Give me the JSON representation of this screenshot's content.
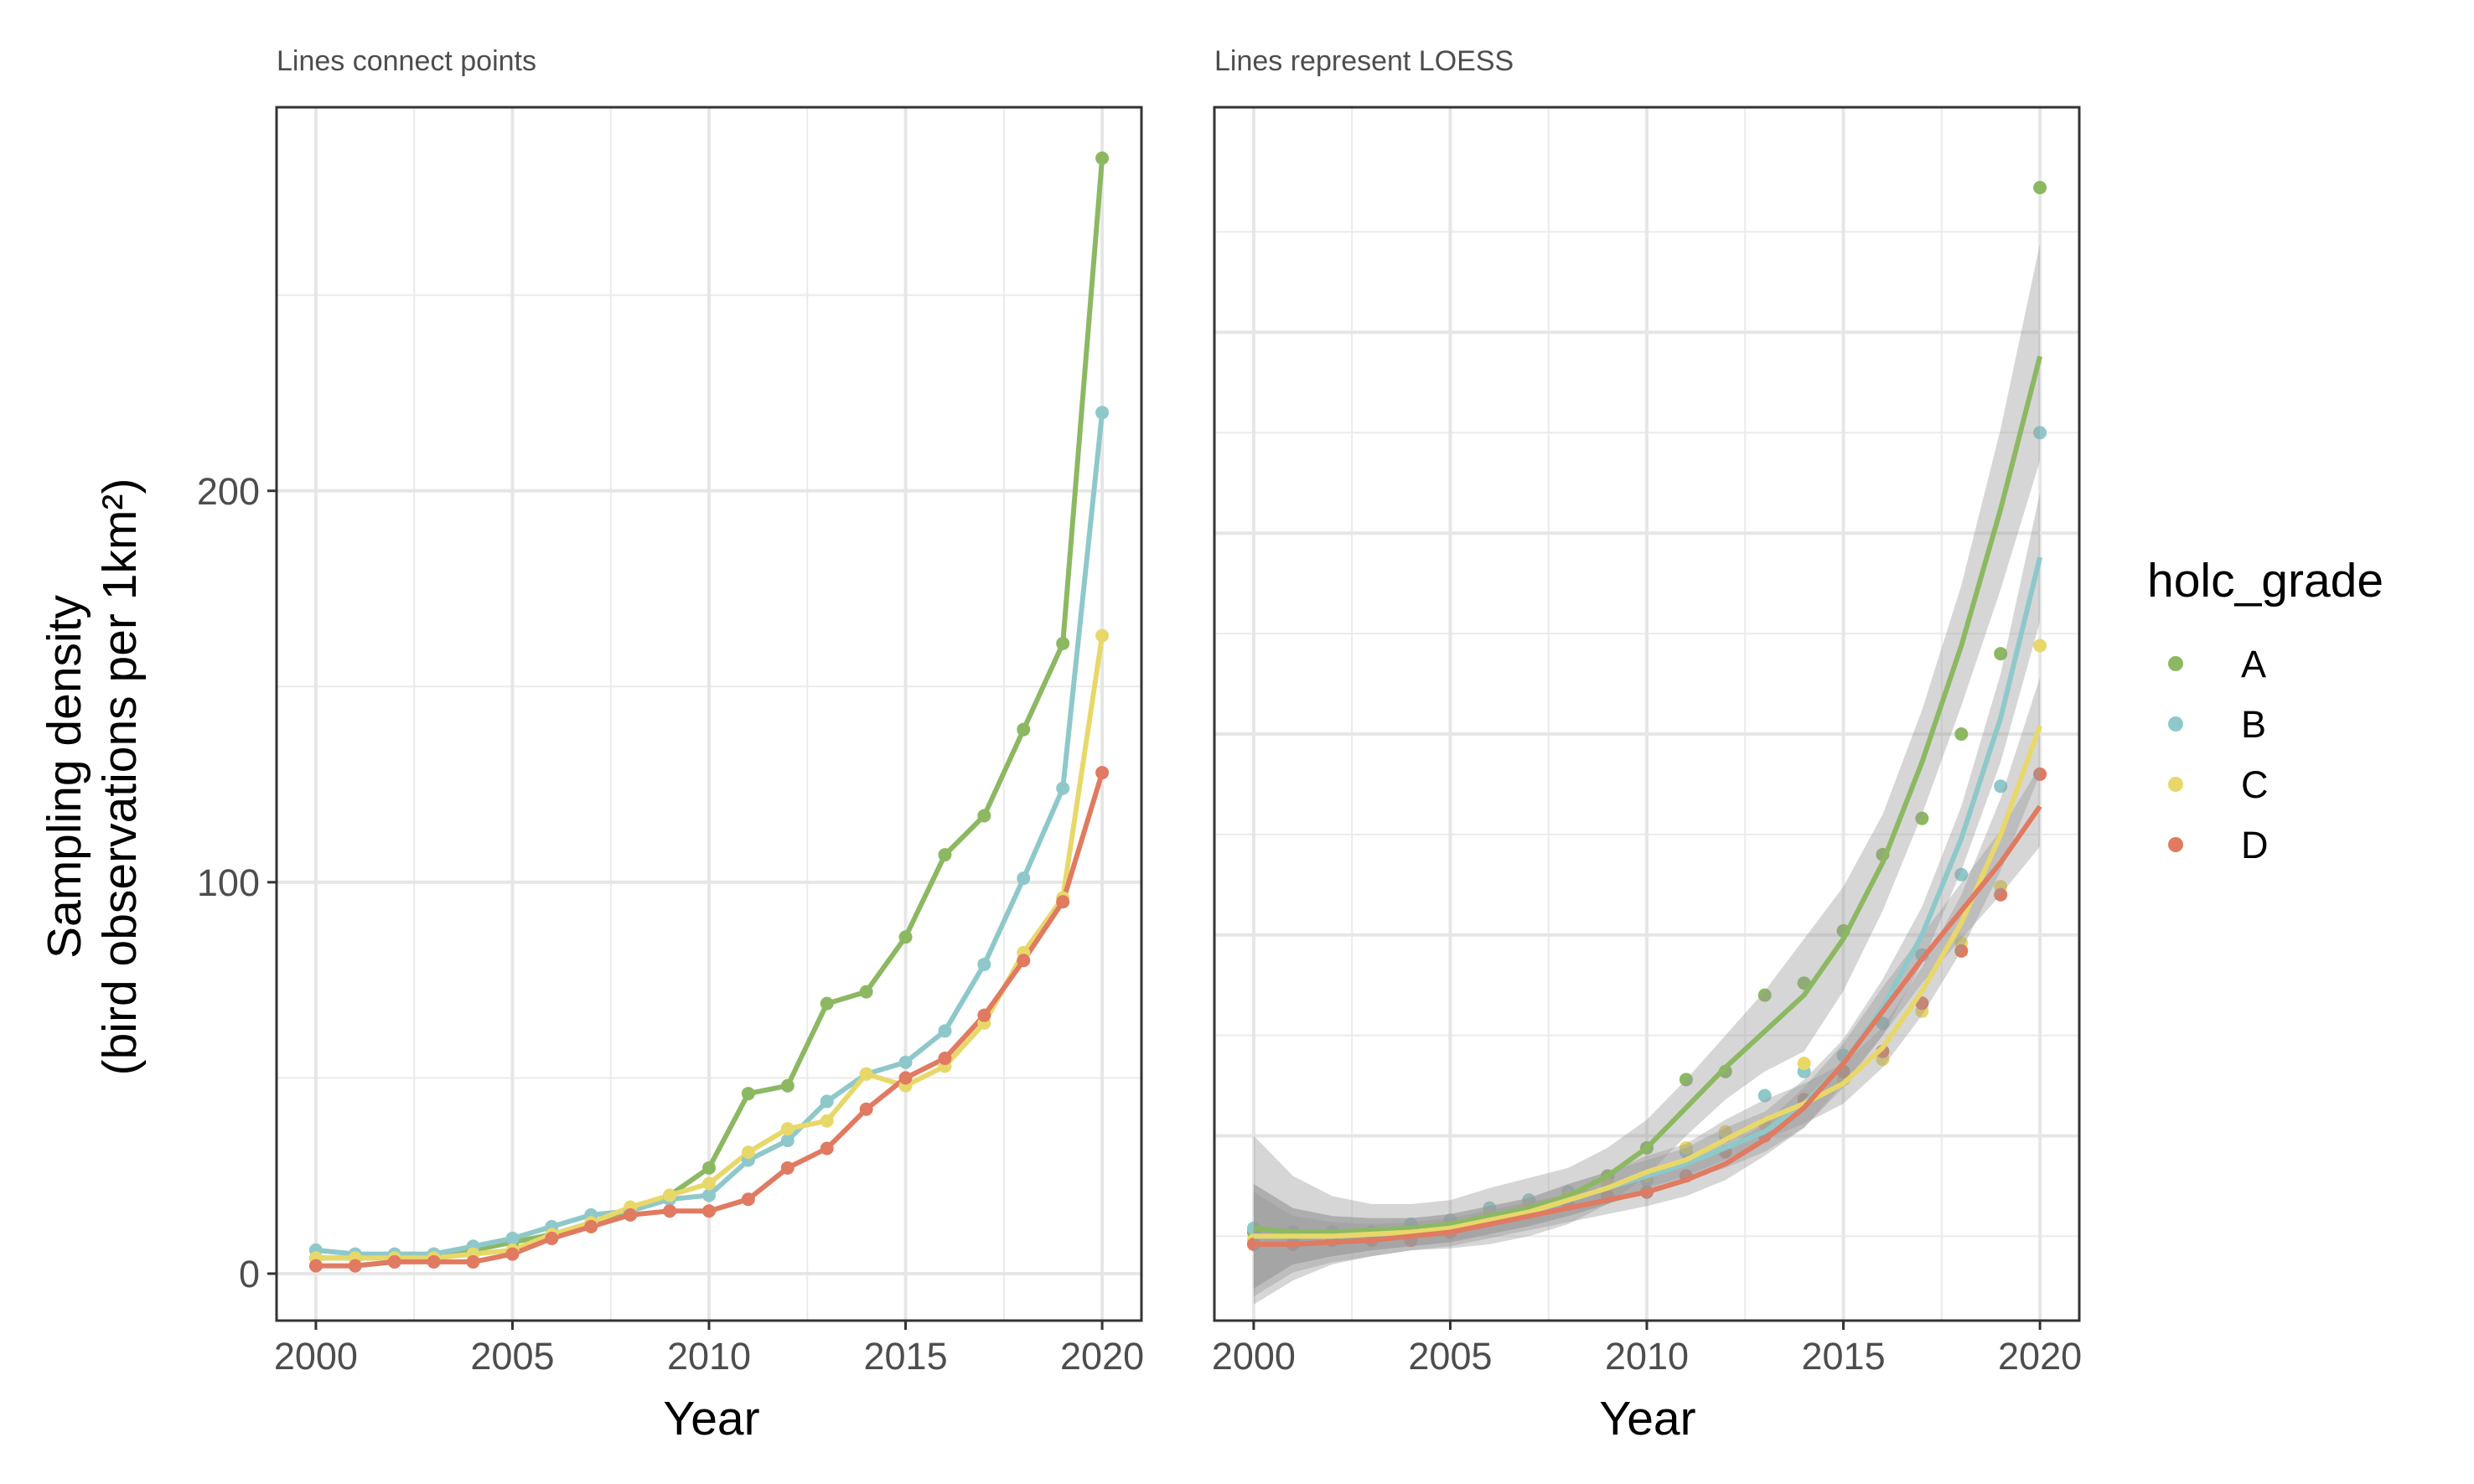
{
  "chart_data": {
    "type": "line",
    "ylabel_line1": "Sampling density",
    "ylabel_line2": "(bird observations per 1km²)",
    "legend": {
      "title": "holc_grade",
      "position": "right"
    },
    "grid": true,
    "x": [
      2000,
      2001,
      2002,
      2003,
      2004,
      2005,
      2006,
      2007,
      2008,
      2009,
      2010,
      2011,
      2012,
      2013,
      2014,
      2015,
      2016,
      2017,
      2018,
      2019,
      2020
    ],
    "series": [
      {
        "name": "A",
        "color": "#8CB862",
        "values": [
          4,
          4,
          4,
          5,
          6,
          8,
          10,
          13,
          16,
          20,
          27,
          46,
          48,
          69,
          72,
          86,
          107,
          117,
          139,
          161,
          285
        ]
      },
      {
        "name": "B",
        "color": "#8EC8CA",
        "values": [
          6,
          5,
          5,
          5,
          7,
          9,
          12,
          15,
          16,
          19,
          20,
          29,
          34,
          44,
          51,
          54,
          62,
          79,
          101,
          124,
          220
        ]
      },
      {
        "name": "C",
        "color": "#E8D86A",
        "values": [
          4,
          4,
          4,
          4,
          5,
          6,
          10,
          13,
          17,
          20,
          23,
          31,
          37,
          39,
          51,
          48,
          53,
          64,
          82,
          96,
          163
        ]
      },
      {
        "name": "D",
        "color": "#E07A61",
        "values": [
          2,
          2,
          3,
          3,
          3,
          5,
          9,
          12,
          15,
          16,
          16,
          19,
          27,
          32,
          42,
          50,
          55,
          66,
          80,
          95,
          128
        ]
      }
    ],
    "panels": [
      {
        "id": "left",
        "subtitle": "Lines connect points",
        "xlabel": "Year",
        "xlim": [
          1999,
          2021
        ],
        "ylim": [
          -12,
          298
        ],
        "x_ticks": [
          2000,
          2005,
          2010,
          2015,
          2020
        ],
        "y_ticks": [
          0,
          100,
          200
        ],
        "y_tick_labels": [
          "0",
          "100",
          "200"
        ],
        "y_minor": [
          50,
          150,
          250
        ]
      },
      {
        "id": "right",
        "subtitle": "Lines represent LOESS",
        "xlabel": "Year",
        "xlim": [
          1999,
          2021
        ],
        "ylim": [
          4,
          306
        ],
        "x_ticks": [
          2000,
          2005,
          2010,
          2015,
          2020
        ],
        "y_ticks": [
          50,
          100,
          150,
          200,
          250
        ],
        "y_tick_labels": [],
        "y_minor": [
          25,
          75,
          125,
          175,
          225,
          275
        ],
        "loess": [
          {
            "name": "A",
            "fit": [
              27,
              26,
              26,
              26.5,
              27,
              28,
              30,
              32,
              35,
              40,
              47,
              57,
              67,
              76,
              85,
              99,
              118,
              143,
              172,
              206,
              244
            ],
            "lower": [
              8,
              14,
              18,
              20,
              21.5,
              22,
              23,
              25,
              28,
              33,
              40,
              50,
              59,
              66,
              71,
              86,
              106,
              130,
              157,
              186,
              218
            ],
            "upper": [
              50,
              40,
              35,
              33,
              33,
              34,
              37,
              39.5,
              42,
              47,
              54,
              64,
              75,
              86,
              99,
              112,
              130,
              156,
              187,
              226,
              272
            ]
          },
          {
            "name": "B",
            "fit": [
              25,
              25,
              25,
              25.5,
              26,
              27,
              29,
              31,
              34,
              37,
              40,
              43,
              47,
              51,
              58,
              68,
              82,
              100,
              124,
              154,
              194
            ],
            "lower": [
              12,
              18,
              20,
              21.5,
              22.5,
              23.5,
              25.5,
              27.5,
              30,
              33,
              36,
              39,
              42,
              46,
              52,
              62,
              75,
              93,
              116,
              143,
              178
            ],
            "upper": [
              38,
              32,
              30,
              29.5,
              29.5,
              30.5,
              32.5,
              34.5,
              38,
              41,
              44,
              47,
              52,
              56,
              64,
              74,
              89,
              107,
              132,
              165,
              210
            ]
          },
          {
            "name": "C",
            "fit": [
              25,
              25,
              25,
              25.5,
              26,
              27,
              29,
              31,
              34,
              37,
              41,
              44,
              49,
              54,
              58,
              63,
              72,
              86,
              103,
              125,
              152
            ],
            "lower": [
              12,
              18,
              20,
              21.5,
              22.5,
              23.5,
              25.5,
              27.5,
              30,
              33,
              37,
              40,
              44,
              49,
              53,
              58,
              67,
              80,
              96,
              116,
              140
            ],
            "upper": [
              38,
              32,
              30,
              29.5,
              29.5,
              30.5,
              32.5,
              34.5,
              38,
              41,
              45,
              48,
              54,
              59,
              63,
              68,
              77,
              92,
              110,
              134,
              164
            ]
          },
          {
            "name": "D",
            "fit": [
              23,
              23,
              23.5,
              24,
              25,
              26,
              28,
              30,
              32,
              34,
              36,
              39,
              43,
              49,
              57,
              68,
              81,
              94,
              106,
              118,
              132
            ],
            "lower": [
              10,
              16,
              18.5,
              20,
              21.5,
              22.5,
              24.5,
              26.5,
              28.5,
              30.5,
              32.5,
              35,
              39,
              45,
              52,
              63,
              75,
              88,
              99,
              110,
              122
            ],
            "upper": [
              36,
              30,
              28.5,
              28,
              28.5,
              29.5,
              31.5,
              33.5,
              35.5,
              37.5,
              39.5,
              43,
              47,
              53,
              62,
              73,
              87,
              100,
              113,
              126,
              142
            ]
          }
        ],
        "points": [
          {
            "name": "A",
            "values": [
              26,
              25,
              25,
              25,
              26,
              27,
              30,
              32,
              35,
              40,
              47,
              64,
              66,
              85,
              88,
              101,
              120,
              129,
              150,
              170,
              286
            ]
          },
          {
            "name": "B",
            "values": [
              27,
              26,
              26,
              26,
              28,
              29,
              32,
              34,
              36,
              38,
              39,
              46,
              50,
              60,
              66,
              70,
              78,
              95,
              115,
              137,
              225
            ]
          },
          {
            "name": "C",
            "values": [
              24,
              24,
              24,
              25,
              25,
              26,
              30,
              32,
              35,
              38,
              40,
              47,
              51,
              53,
              68,
              64,
              69,
              81,
              98,
              112,
              172
            ]
          },
          {
            "name": "D",
            "values": [
              23,
              23,
              24,
              24,
              24,
              26,
              29,
              31,
              33,
              35,
              36,
              40,
              46,
              50,
              59,
              66,
              71,
              83,
              96,
              110,
              140
            ]
          }
        ]
      }
    ]
  }
}
